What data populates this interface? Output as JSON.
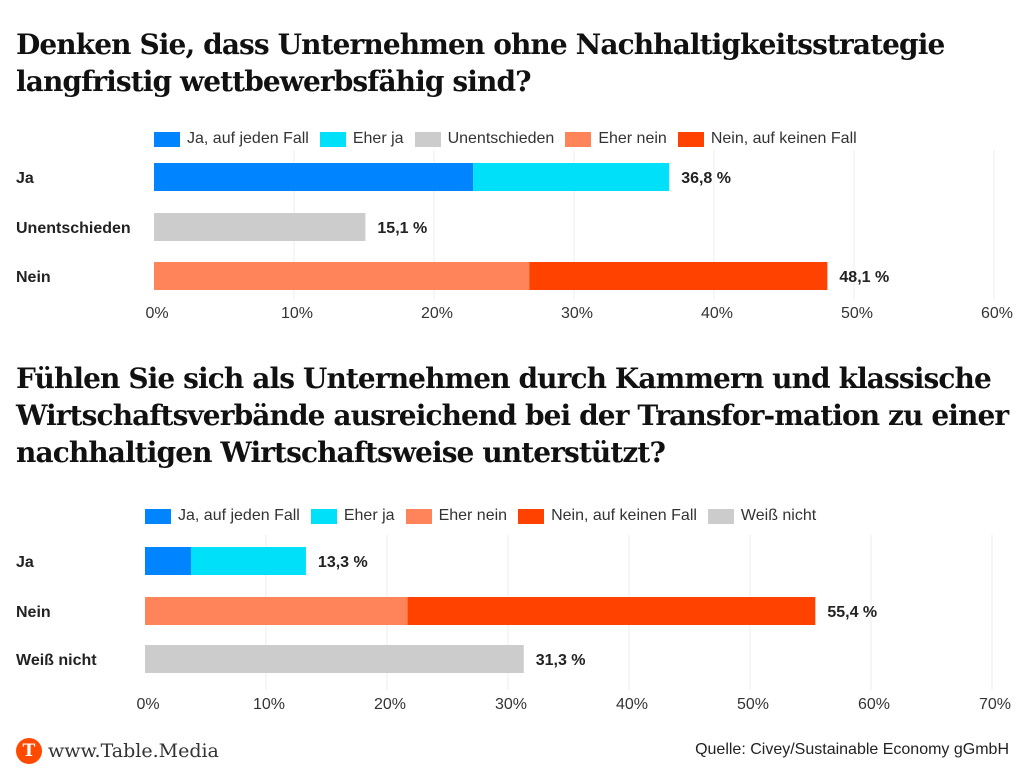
{
  "footer": {
    "logo_letter": "T",
    "site": "www.Table.Media",
    "source": "Quelle: Civey/Sustainable Economy gGmbH"
  },
  "chart_data": [
    {
      "type": "bar",
      "orientation": "horizontal",
      "stacked": true,
      "title": "Denken Sie, dass Unternehmen ohne Nachhaltigkeitsstrategie langfristig wettbewerbsfähig sind?",
      "categories": [
        "Ja",
        "Unentschieden",
        "Nein"
      ],
      "legend": [
        {
          "name": "Ja, auf jeden Fall",
          "color": "#0084ff"
        },
        {
          "name": "Eher ja",
          "color": "#00e0f8"
        },
        {
          "name": "Unentschieden",
          "color": "#cccccc"
        },
        {
          "name": "Eher nein",
          "color": "#ff845a"
        },
        {
          "name": "Nein, auf keinen Fall",
          "color": "#ff4200"
        }
      ],
      "legend_position": "top",
      "rows": [
        {
          "category": "Ja",
          "segments": [
            {
              "series": "Ja, auf jeden Fall",
              "value": 22.8
            },
            {
              "series": "Eher ja",
              "value": 14.0
            }
          ],
          "total_label": "36,8 %"
        },
        {
          "category": "Unentschieden",
          "segments": [
            {
              "series": "Unentschieden",
              "value": 15.1
            }
          ],
          "total_label": "15,1 %"
        },
        {
          "category": "Nein",
          "segments": [
            {
              "series": "Eher nein",
              "value": 26.8
            },
            {
              "series": "Nein, auf keinen Fall",
              "value": 21.3
            }
          ],
          "total_label": "48,1 %"
        }
      ],
      "xlim": [
        0,
        60
      ],
      "xticks": [
        0,
        10,
        20,
        30,
        40,
        50,
        60
      ],
      "xtick_labels": [
        "0%",
        "10%",
        "20%",
        "30%",
        "40%",
        "50%",
        "60%"
      ],
      "xlabel": "",
      "ylabel": "",
      "grid": true
    },
    {
      "type": "bar",
      "orientation": "horizontal",
      "stacked": true,
      "title": "Fühlen Sie sich als Unternehmen durch Kammern und klassische Wirtschaftsverbände ausreichend bei der Transfor-mation zu einer nachhaltigen Wirtschaftsweise unterstützt?",
      "categories": [
        "Ja",
        "Nein",
        "Weiß nicht"
      ],
      "legend": [
        {
          "name": "Ja, auf jeden Fall",
          "color": "#0084ff"
        },
        {
          "name": "Eher ja",
          "color": "#00e0f8"
        },
        {
          "name": "Eher nein",
          "color": "#ff845a"
        },
        {
          "name": "Nein, auf keinen Fall",
          "color": "#ff4200"
        },
        {
          "name": "Weiß nicht",
          "color": "#cccccc"
        }
      ],
      "legend_position": "top",
      "rows": [
        {
          "category": "Ja",
          "segments": [
            {
              "series": "Ja, auf jeden Fall",
              "value": 3.8
            },
            {
              "series": "Eher ja",
              "value": 9.5
            }
          ],
          "total_label": "13,3 %"
        },
        {
          "category": "Nein",
          "segments": [
            {
              "series": "Eher nein",
              "value": 21.7
            },
            {
              "series": "Nein, auf keinen Fall",
              "value": 33.7
            }
          ],
          "total_label": "55,4 %"
        },
        {
          "category": "Weiß nicht",
          "segments": [
            {
              "series": "Weiß nicht",
              "value": 31.3
            }
          ],
          "total_label": "31,3 %"
        }
      ],
      "xlim": [
        0,
        70
      ],
      "xticks": [
        0,
        10,
        20,
        30,
        40,
        50,
        60,
        70
      ],
      "xtick_labels": [
        "0%",
        "10%",
        "20%",
        "30%",
        "40%",
        "50%",
        "60%",
        "70%"
      ],
      "xlabel": "",
      "ylabel": "",
      "grid": true
    }
  ]
}
